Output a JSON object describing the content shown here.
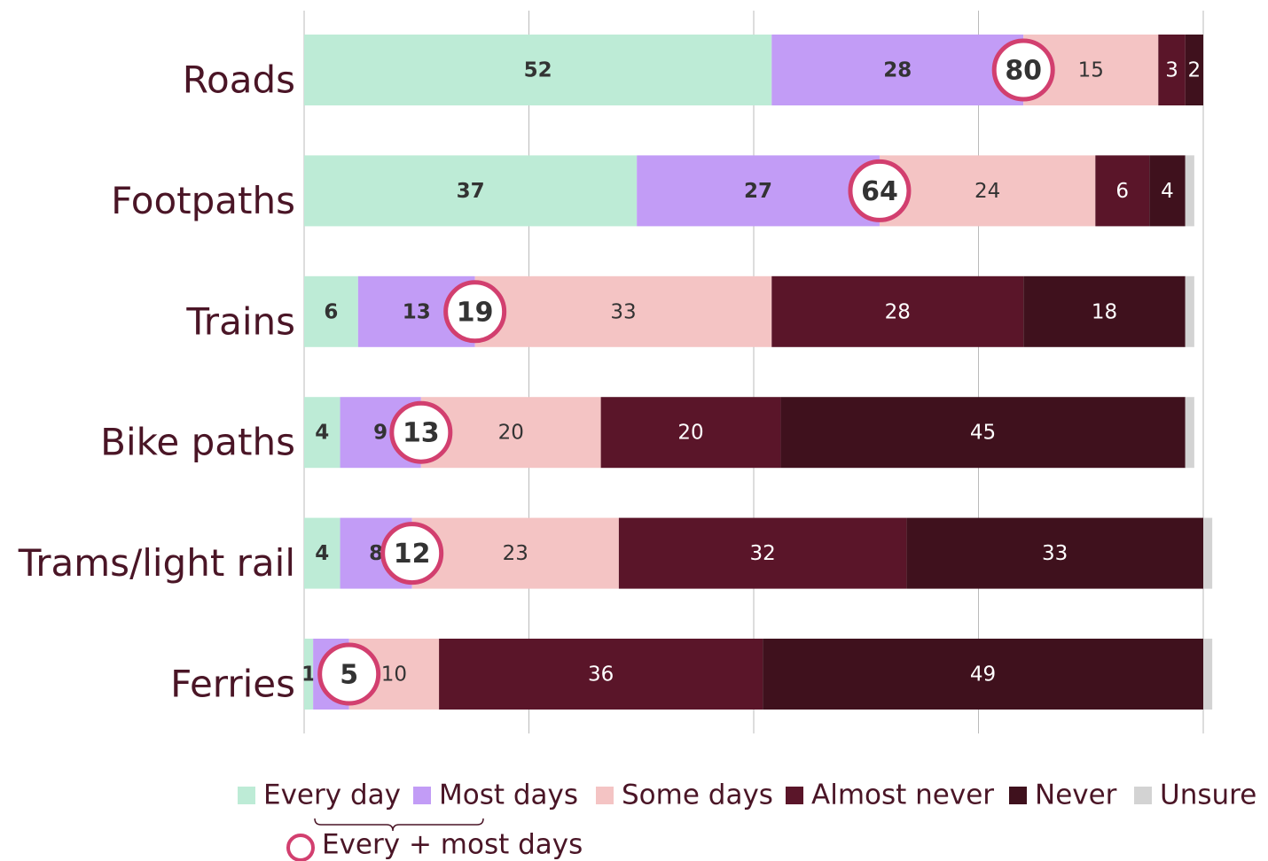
{
  "chart_data": {
    "type": "stacked-bar-horizontal",
    "categories": [
      "Roads",
      "Footpaths",
      "Trains",
      "Bike paths",
      "Trams/light rail",
      "Ferries"
    ],
    "series": [
      {
        "name": "Every day",
        "color": "#bdebd6",
        "values": [
          52,
          37,
          6,
          4,
          4,
          1
        ]
      },
      {
        "name": "Most days",
        "color": "#c29cf6",
        "values": [
          28,
          27,
          13,
          9,
          8,
          4
        ]
      },
      {
        "name": "Some days",
        "color": "#f4c4c4",
        "values": [
          15,
          24,
          33,
          20,
          23,
          10
        ]
      },
      {
        "name": "Almost never",
        "color": "#5a1529",
        "values": [
          3,
          6,
          28,
          20,
          32,
          36
        ]
      },
      {
        "name": "Never",
        "color": "#3f111d",
        "values": [
          2,
          4,
          18,
          45,
          33,
          49
        ]
      },
      {
        "name": "Unsure",
        "color": "#d3d3d3",
        "values": [
          0,
          1,
          1,
          1,
          1,
          1
        ],
        "show_labels": false
      }
    ],
    "combined": {
      "name": "Every + most days",
      "color": "#d23f6f",
      "values": [
        80,
        64,
        19,
        13,
        12,
        5
      ]
    },
    "xlim": [
      0,
      100
    ],
    "xticks": [
      0,
      25,
      50,
      75,
      100
    ],
    "grid": true,
    "legend": "bottom"
  }
}
